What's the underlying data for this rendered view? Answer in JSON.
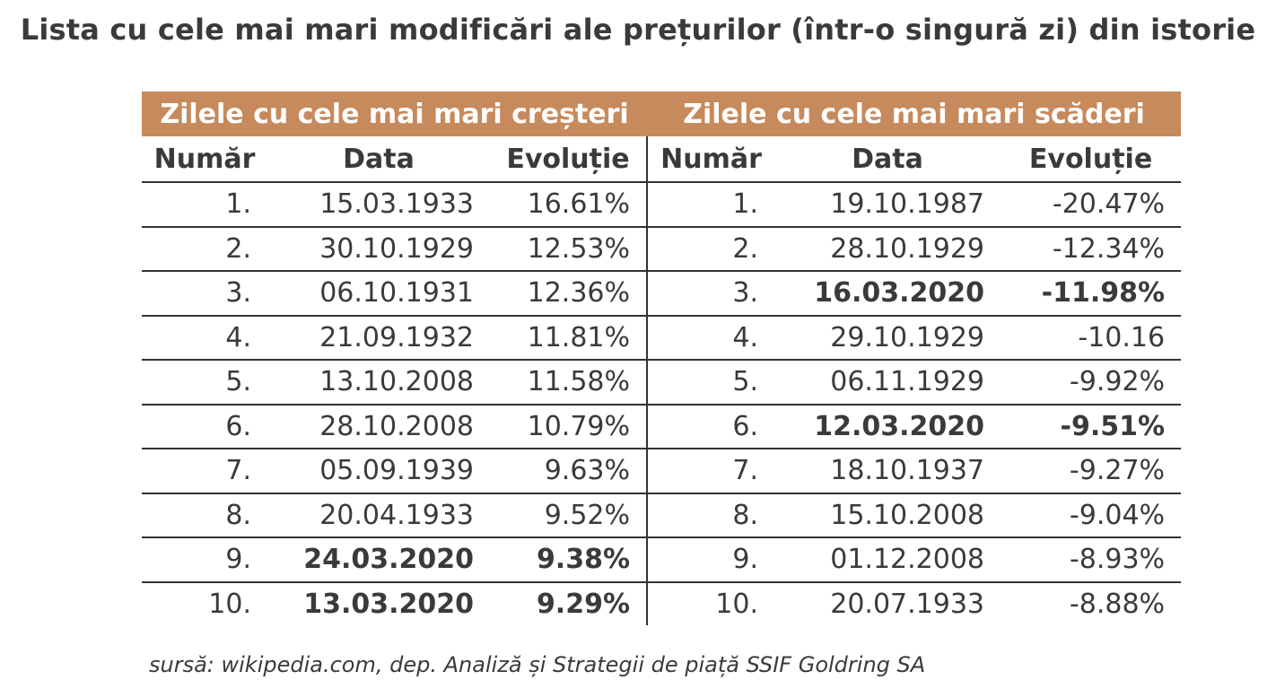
{
  "title": "Lista cu cele mai mari modificări ale prețurilor (într-o singură zi) din istorie",
  "groups": {
    "gains": "Zilele cu cele mai mari creșteri",
    "losses": "Zilele cu cele mai mari scăderi"
  },
  "headers": {
    "number": "Număr",
    "date": "Data",
    "change": "Evoluție"
  },
  "gains": [
    {
      "n": "1.",
      "date": "15.03.1933",
      "change": "16.61%"
    },
    {
      "n": "2.",
      "date": "30.10.1929",
      "change": "12.53%"
    },
    {
      "n": "3.",
      "date": "06.10.1931",
      "change": "12.36%"
    },
    {
      "n": "4.",
      "date": "21.09.1932",
      "change": "11.81%"
    },
    {
      "n": "5.",
      "date": "13.10.2008",
      "change": "11.58%"
    },
    {
      "n": "6.",
      "date": "28.10.2008",
      "change": "10.79%"
    },
    {
      "n": "7.",
      "date": "05.09.1939",
      "change": "9.63%"
    },
    {
      "n": "8.",
      "date": "20.04.1933",
      "change": "9.52%"
    },
    {
      "n": "9.",
      "date": "24.03.2020",
      "change": "9.38%"
    },
    {
      "n": "10.",
      "date": "13.03.2020",
      "change": "9.29%"
    }
  ],
  "losses": [
    {
      "n": "1.",
      "date": "19.10.1987",
      "change": "-20.47%"
    },
    {
      "n": "2.",
      "date": "28.10.1929",
      "change": "-12.34%"
    },
    {
      "n": "3.",
      "date": "16.03.2020",
      "change": "-11.98%"
    },
    {
      "n": "4.",
      "date": "29.10.1929",
      "change": "-10.16"
    },
    {
      "n": "5.",
      "date": "06.11.1929",
      "change": "-9.92%"
    },
    {
      "n": "6.",
      "date": "12.03.2020",
      "change": "-9.51%"
    },
    {
      "n": "7.",
      "date": "18.10.1937",
      "change": "-9.27%"
    },
    {
      "n": "8.",
      "date": "15.10.2008",
      "change": "-9.04%"
    },
    {
      "n": "9.",
      "date": "01.12.2008",
      "change": "-8.93%"
    },
    {
      "n": "10.",
      "date": "20.07.1933",
      "change": "-8.88%"
    }
  ],
  "source": "sursă: wikipedia.com, dep. Analiză și Strategii de piață SSIF Goldring SA"
}
